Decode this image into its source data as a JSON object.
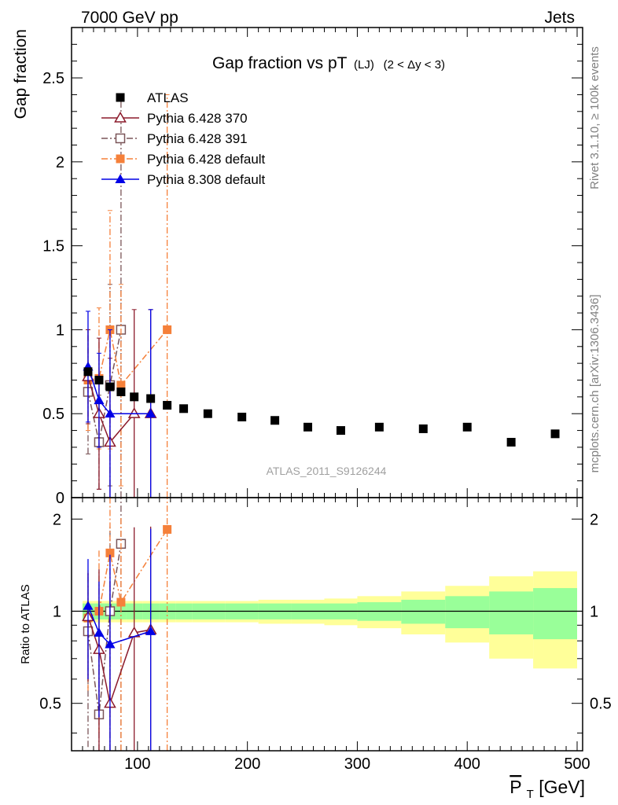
{
  "header": {
    "left": "7000 GeV pp",
    "right": "Jets",
    "title_main": "Gap fraction vs pT",
    "title_sub": "(LJ)",
    "title_range": "(2 < Δy < 3)",
    "analysis_label": "ATLAS_2011_S9126244",
    "side_text_top": "Rivet 3.1.10, ≥ 100k events",
    "side_text_bottom": "mcplots.cern.ch [arXiv:1306.3436]"
  },
  "colors": {
    "atlas": "#000000",
    "p370": "#8b1a2b",
    "p391": "#7a5558",
    "p6def": "#f5803a",
    "p8def": "#0000e6",
    "band_stat": "#99ff99",
    "band_tot": "#ffff99"
  },
  "chart_data": [
    {
      "type": "scatter",
      "ylabel": "Gap fraction",
      "xlim": [
        40,
        505
      ],
      "ylim": [
        0,
        2.8
      ],
      "y_ticks": [
        0.5,
        1,
        1.5,
        2,
        2.5
      ],
      "y_tick_labels": [
        "0.5",
        "1",
        "1.5",
        "2",
        "2.5"
      ],
      "y_zero_label": "0",
      "legend_position": "top-left",
      "series": [
        {
          "name": "ATLAS",
          "key": "atlas",
          "marker": "square-filled",
          "style": "none",
          "x": [
            55,
            65,
            75,
            85,
            97,
            112,
            127,
            142,
            164,
            195,
            225,
            255,
            285,
            320,
            360,
            400,
            440,
            480
          ],
          "y": [
            0.75,
            0.7,
            0.66,
            0.63,
            0.6,
            0.59,
            0.55,
            0.53,
            0.5,
            0.48,
            0.46,
            0.42,
            0.4,
            0.42,
            0.41,
            0.42,
            0.33,
            0.38
          ]
        },
        {
          "name": "Pythia 6.428 370",
          "key": "p370",
          "marker": "triangle-open",
          "style": "solid",
          "x": [
            55,
            65,
            75,
            97,
            112
          ],
          "y": [
            0.72,
            0.5,
            0.33,
            0.5,
            0.5
          ],
          "err": [
            0.28,
            0.45,
            0.5,
            0.62,
            0.62
          ]
        },
        {
          "name": "Pythia 6.428 391",
          "key": "p391",
          "marker": "square-open",
          "style": "dashdot",
          "x": [
            55,
            65,
            75,
            85
          ],
          "y": [
            0.63,
            0.33,
            0.67,
            1.0
          ],
          "err": [
            0.37,
            0.28,
            0.6,
            1.4
          ]
        },
        {
          "name": "Pythia 6.428 default",
          "key": "p6def",
          "marker": "square-filled",
          "style": "dashdot",
          "x": [
            55,
            65,
            75,
            85,
            127
          ],
          "y": [
            0.7,
            0.71,
            1.0,
            0.67,
            1.0
          ],
          "err": [
            0.3,
            0.42,
            0.71,
            0.6,
            1.4
          ]
        },
        {
          "name": "Pythia 8.308 default",
          "key": "p8def",
          "marker": "triangle-filled",
          "style": "solid",
          "x": [
            55,
            65,
            75,
            112
          ],
          "y": [
            0.78,
            0.58,
            0.5,
            0.5
          ],
          "err": [
            0.33,
            0.28,
            0.5,
            0.62
          ]
        }
      ]
    },
    {
      "type": "line",
      "ylabel": "Ratio to ATLAS",
      "xlabel_main": "P",
      "xlabel_sub": "T",
      "xlabel_unit": " [GeV]",
      "xlim": [
        40,
        505
      ],
      "ylim": [
        0.35,
        2.35
      ],
      "y_ticks": [
        0.5,
        1,
        2
      ],
      "y_tick_labels": [
        "0.5",
        "1",
        "2"
      ],
      "x_ticks": [
        100,
        200,
        300,
        400,
        500
      ],
      "x_tick_labels": [
        "100",
        "200",
        "300",
        "400",
        "500"
      ],
      "bands": {
        "edges": [
          50,
          60,
          70,
          80,
          90,
          105,
          120,
          135,
          150,
          180,
          210,
          240,
          270,
          300,
          340,
          380,
          420,
          460,
          500
        ],
        "stat": [
          0.06,
          0.06,
          0.06,
          0.06,
          0.06,
          0.06,
          0.06,
          0.06,
          0.06,
          0.06,
          0.06,
          0.06,
          0.06,
          0.07,
          0.09,
          0.12,
          0.16,
          0.19
        ],
        "tot": [
          0.08,
          0.08,
          0.08,
          0.08,
          0.08,
          0.08,
          0.08,
          0.08,
          0.08,
          0.08,
          0.09,
          0.09,
          0.1,
          0.12,
          0.16,
          0.21,
          0.3,
          0.35
        ]
      },
      "series": [
        {
          "name": "Pythia 6.428 370",
          "key": "p370",
          "x": [
            55,
            65,
            75,
            97,
            112
          ],
          "y": [
            0.96,
            0.75,
            0.5,
            0.85,
            0.87
          ],
          "err": [
            0.37,
            0.62,
            0.75,
            1.03,
            1.02
          ]
        },
        {
          "name": "Pythia 6.428 391",
          "key": "p391",
          "x": [
            55,
            65,
            75,
            85
          ],
          "y": [
            0.86,
            0.46,
            1.0,
            1.66
          ],
          "err": [
            0.5,
            0.4,
            0.9,
            2.2
          ]
        },
        {
          "name": "Pythia 6.428 default",
          "key": "p6def",
          "x": [
            55,
            65,
            75,
            85,
            127
          ],
          "y": [
            0.95,
            1.0,
            1.55,
            1.07,
            1.85
          ],
          "err": [
            0.4,
            0.6,
            1.1,
            0.95,
            2.5
          ]
        },
        {
          "name": "Pythia 8.308 default",
          "key": "p8def",
          "x": [
            55,
            65,
            75,
            112
          ],
          "y": [
            1.04,
            0.85,
            0.78,
            0.86
          ],
          "err": [
            0.44,
            0.4,
            0.75,
            1.0
          ]
        }
      ]
    }
  ]
}
